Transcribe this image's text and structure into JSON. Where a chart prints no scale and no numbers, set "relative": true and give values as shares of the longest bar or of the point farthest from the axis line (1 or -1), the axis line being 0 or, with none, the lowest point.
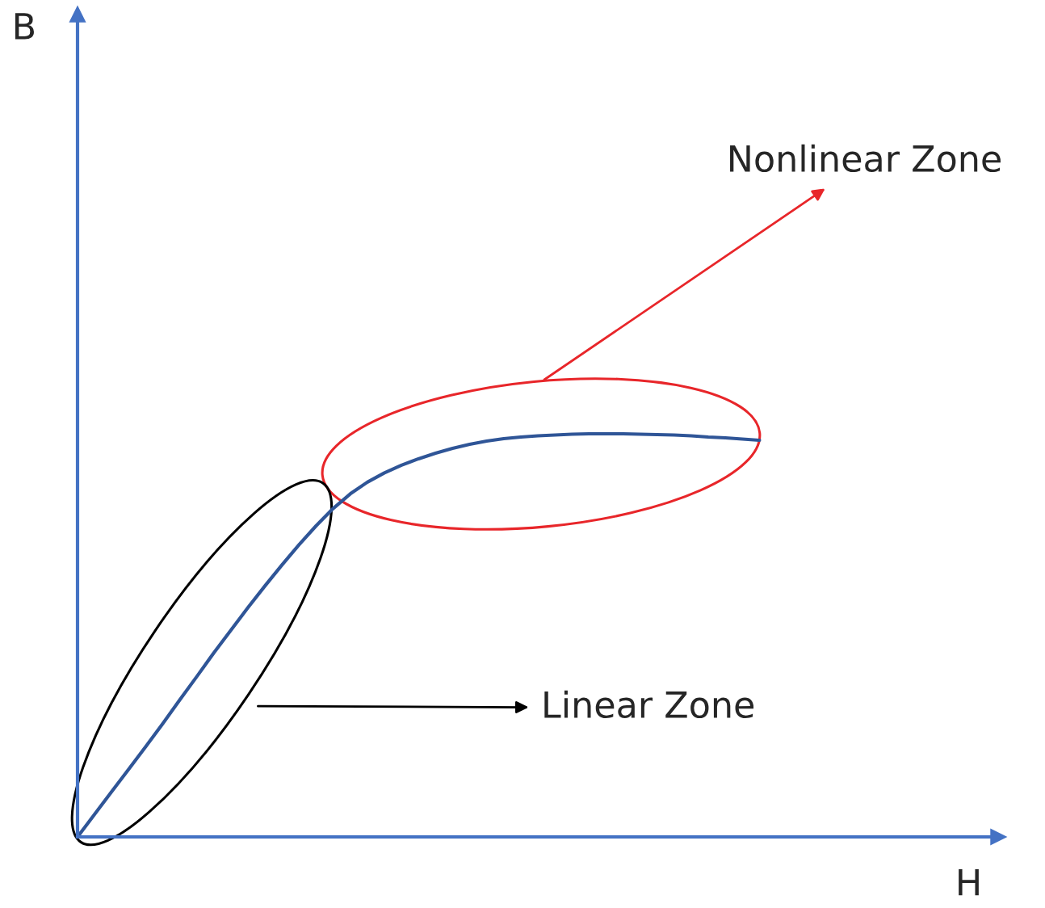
{
  "chart_data": {
    "type": "line",
    "relative": true,
    "xlabel": "H",
    "categories": [
      null,
      null,
      null,
      null,
      null,
      null,
      null,
      null,
      null,
      null,
      null,
      null,
      null,
      null,
      null,
      null,
      null,
      null,
      null,
      null,
      null,
      null,
      null,
      null,
      null,
      null,
      null,
      null,
      null,
      null,
      null,
      null,
      null,
      null,
      null,
      null,
      null,
      null,
      null,
      null,
      null,
      null,
      null,
      null,
      null,
      null,
      null,
      null,
      null,
      null,
      null,
      null,
      null,
      null,
      null
    ],
    "series": [
      {
        "color": "#2f5597",
        "values": [
          0,
          0.056,
          0.112,
          0.168,
          0.224,
          0.281,
          0.34,
          0.398,
          0.457,
          0.513,
          0.569,
          0.623,
          0.675,
          0.725,
          0.772,
          0.815,
          0.851,
          0.88,
          0.903,
          0.922,
          0.938,
          0.952,
          0.964,
          0.974,
          0.982,
          0.988,
          0.992,
          0.995,
          0.997,
          0.999,
          1.0,
          1.0,
          1.0,
          0.999,
          0.998,
          0.997,
          0.995,
          0.992,
          0.99,
          0.987,
          0.984,
          null,
          null,
          null,
          null,
          null,
          null,
          null,
          null,
          null,
          null,
          null,
          null,
          null,
          null
        ]
      }
    ],
    "annotations": [
      "B",
      "Nonlinear Zone",
      "Linear Zone"
    ]
  }
}
